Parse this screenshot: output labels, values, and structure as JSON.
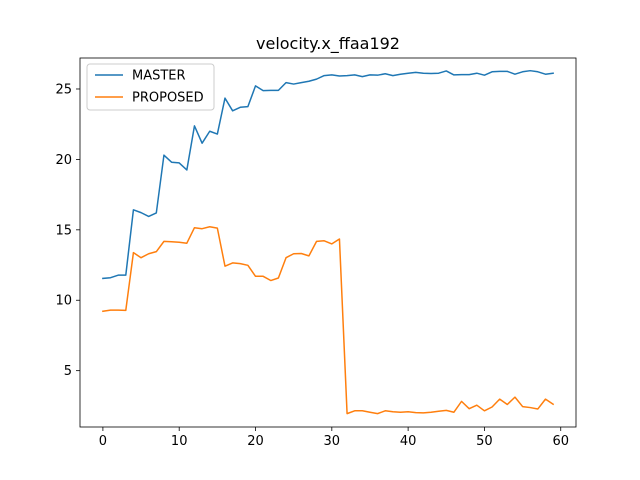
{
  "chart_data": {
    "type": "line",
    "title": "velocity.x_ffaa192",
    "xlabel": "",
    "ylabel": "",
    "xlim": [
      -3,
      62
    ],
    "ylim": [
      1.0,
      27.2
    ],
    "xticks": [
      0,
      10,
      20,
      30,
      40,
      50,
      60
    ],
    "yticks": [
      5,
      10,
      15,
      20,
      25
    ],
    "grid": false,
    "legend_position": "top-left",
    "x": [
      0,
      1,
      2,
      3,
      4,
      5,
      6,
      7,
      8,
      9,
      10,
      11,
      12,
      13,
      14,
      15,
      16,
      17,
      18,
      19,
      20,
      21,
      22,
      23,
      24,
      25,
      26,
      27,
      28,
      29,
      30,
      31,
      32,
      33,
      34,
      35,
      36,
      37,
      38,
      39,
      40,
      41,
      42,
      43,
      44,
      45,
      46,
      47,
      48,
      49,
      50,
      51,
      52,
      53,
      54,
      55,
      56,
      57,
      58,
      59
    ],
    "series": [
      {
        "name": "MASTER",
        "color": "#1f77b4",
        "values": [
          11.55,
          11.6,
          11.78,
          11.78,
          16.42,
          16.22,
          15.95,
          16.2,
          20.3,
          19.8,
          19.75,
          19.25,
          22.38,
          21.15,
          22.0,
          21.8,
          24.35,
          23.45,
          23.7,
          23.75,
          25.22,
          24.88,
          24.9,
          24.9,
          25.45,
          25.35,
          25.45,
          25.55,
          25.7,
          25.95,
          26.0,
          25.92,
          25.95,
          26.0,
          25.88,
          26.0,
          25.98,
          26.08,
          25.95,
          26.05,
          26.12,
          26.18,
          26.12,
          26.1,
          26.12,
          26.28,
          26.0,
          26.02,
          26.02,
          26.12,
          25.98,
          26.22,
          26.25,
          26.25,
          26.05,
          26.22,
          26.3,
          26.22,
          26.05,
          26.12
        ]
      },
      {
        "name": "PROPOSED",
        "color": "#ff7f0e",
        "values": [
          9.22,
          9.3,
          9.3,
          9.28,
          13.38,
          13.02,
          13.3,
          13.45,
          14.18,
          14.15,
          14.12,
          14.05,
          15.15,
          15.08,
          15.22,
          15.12,
          12.42,
          12.65,
          12.6,
          12.48,
          11.7,
          11.7,
          11.4,
          11.58,
          13.02,
          13.3,
          13.32,
          13.15,
          14.18,
          14.22,
          14.0,
          14.35,
          1.95,
          2.15,
          2.15,
          2.05,
          1.95,
          2.15,
          2.08,
          2.05,
          2.08,
          2.02,
          2.0,
          2.05,
          2.12,
          2.18,
          2.05,
          2.82,
          2.3,
          2.55,
          2.15,
          2.42,
          2.98,
          2.6,
          3.12,
          2.45,
          2.38,
          2.28,
          2.98,
          2.62
        ]
      }
    ]
  }
}
